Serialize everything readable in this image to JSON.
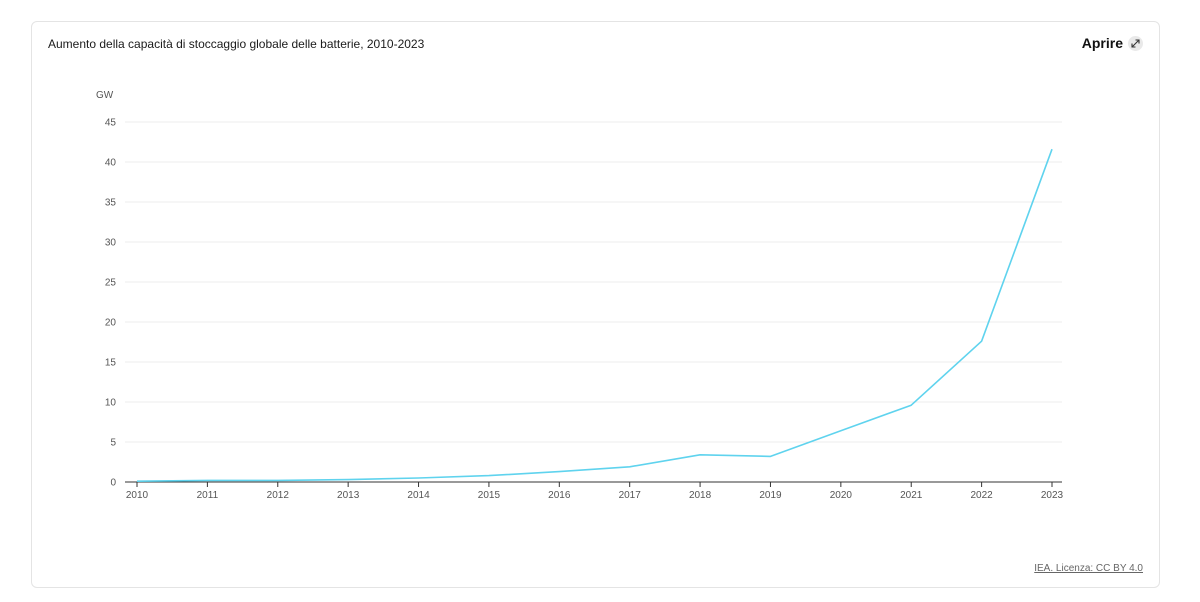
{
  "header": {
    "title": "Aumento della capacità di stoccaggio globale delle batterie, 2010-2023",
    "open_label": "Aprire",
    "open_icon": "expand-arrows-icon"
  },
  "footer": {
    "source": "IEA. Licenza: CC BY 4.0"
  },
  "chart_data": {
    "type": "line",
    "ylabel": "GW",
    "ylim": [
      0,
      45
    ],
    "yticks": [
      0,
      5,
      10,
      15,
      20,
      25,
      30,
      35,
      40,
      45
    ],
    "grid": true,
    "x": [
      "2010",
      "2011",
      "2012",
      "2013",
      "2014",
      "2015",
      "2016",
      "2017",
      "2018",
      "2019",
      "2020",
      "2021",
      "2022",
      "2023"
    ],
    "series": [
      {
        "color": "#5fd3ee",
        "values": [
          0.1,
          0.2,
          0.2,
          0.3,
          0.5,
          0.8,
          1.3,
          1.9,
          3.4,
          3.2,
          6.4,
          9.6,
          17.6,
          41.6
        ]
      }
    ]
  }
}
